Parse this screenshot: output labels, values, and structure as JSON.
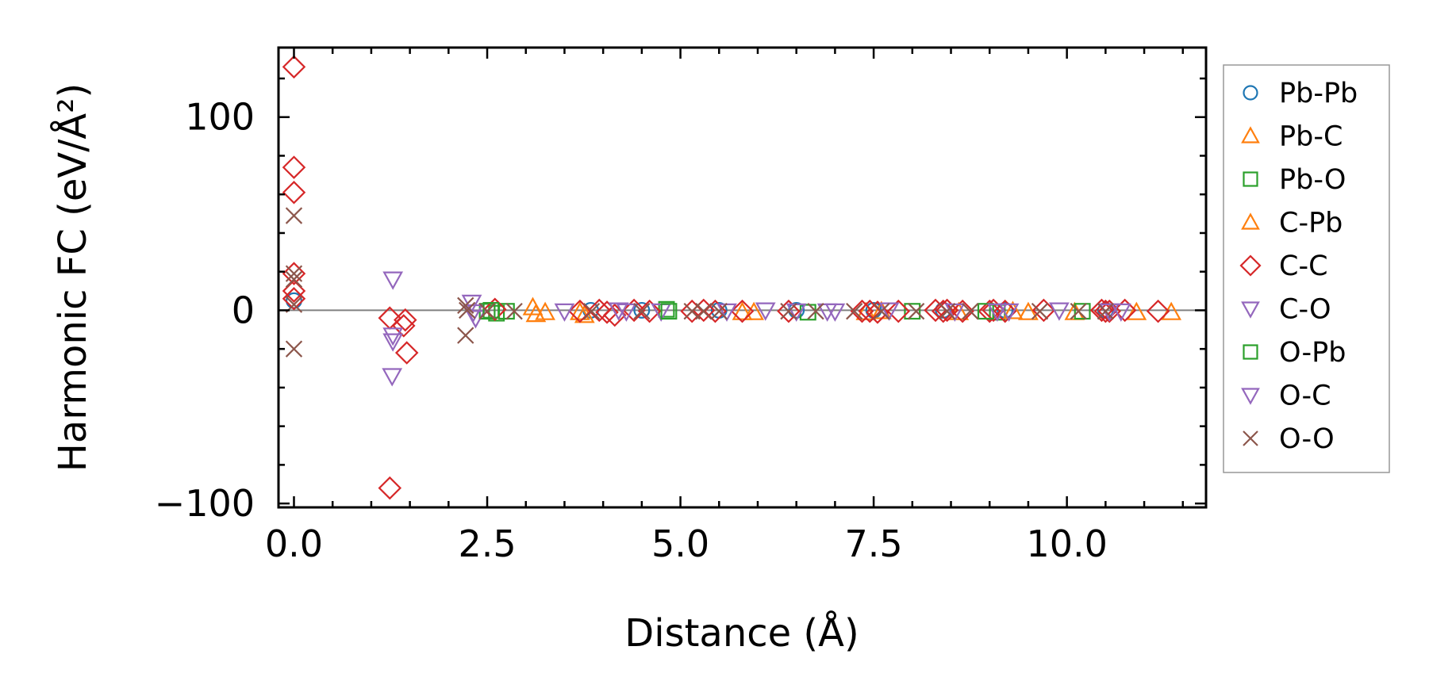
{
  "chart_data": {
    "type": "scatter",
    "title": "",
    "xlabel": "Distance (Å)",
    "ylabel": "Harmonic FC (eV/Å²)",
    "xlim": [
      -0.2,
      11.8
    ],
    "ylim": [
      -102,
      136
    ],
    "xticks": [
      0.0,
      2.5,
      5.0,
      7.5,
      10.0
    ],
    "xtick_labels": [
      "0.0",
      "2.5",
      "5.0",
      "7.5",
      "10.0"
    ],
    "yticks": [
      -100,
      0,
      100
    ],
    "ytick_labels": [
      "−100",
      "0",
      "100"
    ],
    "zero_line": 0,
    "grid": false,
    "legend_position": "outside-right",
    "series": [
      {
        "name": "Pb-Pb",
        "marker": "circle",
        "color": "#1f77b4",
        "points": [
          [
            0.0,
            5.0
          ],
          [
            3.84,
            0.0
          ],
          [
            4.5,
            0.0
          ],
          [
            5.5,
            0.0
          ],
          [
            6.5,
            0.0
          ],
          [
            7.5,
            0.0
          ],
          [
            8.4,
            0.0
          ],
          [
            9.2,
            0.0
          ],
          [
            10.5,
            0.0
          ]
        ]
      },
      {
        "name": "Pb-C",
        "marker": "triangle-up",
        "color": "#ff7f0e",
        "points": [
          [
            3.09,
            1.5
          ],
          [
            3.13,
            -2.0
          ],
          [
            3.7,
            -1.0
          ],
          [
            3.76,
            -2.5
          ],
          [
            5.95,
            -1.0
          ],
          [
            7.4,
            -1.0
          ],
          [
            8.6,
            -1.0
          ],
          [
            9.5,
            -1.0
          ],
          [
            10.1,
            -1.0
          ],
          [
            10.9,
            -1.0
          ],
          [
            11.35,
            -1.0
          ]
        ]
      },
      {
        "name": "Pb-O",
        "marker": "square",
        "color": "#2ca02c",
        "points": [
          [
            2.5,
            -0.5
          ],
          [
            2.62,
            -1.5
          ],
          [
            2.75,
            -0.5
          ],
          [
            4.82,
            0.5
          ],
          [
            6.65,
            -1.0
          ],
          [
            8.0,
            -0.5
          ],
          [
            9.1,
            -1.0
          ],
          [
            10.2,
            -0.5
          ]
        ]
      },
      {
        "name": "C-Pb",
        "marker": "triangle-up",
        "color": "#ff7f0e",
        "points": [
          [
            3.25,
            -1.0
          ],
          [
            5.8,
            -1.0
          ],
          [
            7.6,
            -0.5
          ],
          [
            9.3,
            -0.5
          ]
        ]
      },
      {
        "name": "C-C",
        "marker": "diamond",
        "color": "#d62728",
        "points": [
          [
            0.0,
            126
          ],
          [
            0.0,
            74
          ],
          [
            0.0,
            61
          ],
          [
            0.0,
            19
          ],
          [
            0.0,
            10
          ],
          [
            0.0,
            6
          ],
          [
            1.24,
            -4
          ],
          [
            1.42,
            -8
          ],
          [
            1.44,
            -5
          ],
          [
            1.46,
            -22
          ],
          [
            1.24,
            -92
          ],
          [
            2.6,
            0.5
          ],
          [
            3.7,
            -0.5
          ],
          [
            3.95,
            0.0
          ],
          [
            4.05,
            -1.0
          ],
          [
            4.15,
            -2.5
          ],
          [
            4.4,
            0.0
          ],
          [
            4.6,
            -0.5
          ],
          [
            5.15,
            -0.5
          ],
          [
            5.3,
            0.0
          ],
          [
            5.45,
            -0.5
          ],
          [
            5.8,
            -0.5
          ],
          [
            6.4,
            -0.5
          ],
          [
            7.35,
            -0.5
          ],
          [
            7.45,
            -0.5
          ],
          [
            7.55,
            -1.0
          ],
          [
            7.82,
            -0.5
          ],
          [
            8.3,
            0.0
          ],
          [
            8.4,
            -0.5
          ],
          [
            8.45,
            0.0
          ],
          [
            8.65,
            -0.5
          ],
          [
            9.0,
            -0.5
          ],
          [
            9.05,
            0.0
          ],
          [
            9.2,
            -0.5
          ],
          [
            9.7,
            0.0
          ],
          [
            10.45,
            0.0
          ],
          [
            10.5,
            -0.5
          ],
          [
            10.55,
            -0.5
          ],
          [
            10.75,
            0.0
          ],
          [
            11.18,
            -0.5
          ]
        ]
      },
      {
        "name": "C-O",
        "marker": "triangle-down",
        "color": "#9467bd",
        "points": [
          [
            1.28,
            16
          ],
          [
            1.28,
            -13
          ],
          [
            1.28,
            -16
          ],
          [
            1.27,
            -34
          ],
          [
            2.3,
            4
          ],
          [
            2.32,
            -1
          ],
          [
            2.35,
            -4
          ],
          [
            3.5,
            -0.5
          ],
          [
            4.2,
            0.0
          ],
          [
            4.75,
            -0.5
          ],
          [
            5.6,
            -0.5
          ],
          [
            6.1,
            0.0
          ],
          [
            6.5,
            -0.5
          ],
          [
            7.0,
            -0.5
          ],
          [
            7.7,
            0.0
          ],
          [
            8.55,
            -0.5
          ],
          [
            9.25,
            -0.5
          ],
          [
            9.9,
            0.0
          ],
          [
            10.55,
            -0.5
          ]
        ]
      },
      {
        "name": "O-Pb",
        "marker": "square",
        "color": "#2ca02c",
        "points": [
          [
            2.55,
            0.0
          ],
          [
            4.85,
            -0.5
          ],
          [
            8.95,
            -0.5
          ]
        ]
      },
      {
        "name": "O-C",
        "marker": "triangle-down",
        "color": "#9467bd",
        "points": [
          [
            4.3,
            -0.5
          ],
          [
            6.9,
            -0.5
          ],
          [
            9.1,
            -0.5
          ],
          [
            10.7,
            -0.5
          ]
        ]
      },
      {
        "name": "O-O",
        "marker": "x",
        "color": "#8c564b",
        "points": [
          [
            0.0,
            49
          ],
          [
            0.0,
            19
          ],
          [
            0.0,
            16
          ],
          [
            0.0,
            3
          ],
          [
            0.0,
            -20
          ],
          [
            2.22,
            2.5
          ],
          [
            2.24,
            0.0
          ],
          [
            2.22,
            -13
          ],
          [
            2.5,
            -0.5
          ],
          [
            2.85,
            -0.5
          ],
          [
            3.85,
            -0.5
          ],
          [
            4.5,
            -0.5
          ],
          [
            5.15,
            -0.5
          ],
          [
            5.3,
            -0.5
          ],
          [
            5.5,
            -0.5
          ],
          [
            6.4,
            -0.5
          ],
          [
            6.75,
            -0.5
          ],
          [
            7.25,
            -0.5
          ],
          [
            7.6,
            -0.5
          ],
          [
            8.05,
            -0.5
          ],
          [
            8.45,
            -0.5
          ],
          [
            8.75,
            -0.5
          ],
          [
            9.65,
            -0.5
          ],
          [
            10.15,
            -0.5
          ],
          [
            10.5,
            -0.5
          ]
        ]
      }
    ]
  },
  "legend": {
    "items": [
      {
        "label": "Pb-Pb",
        "marker": "circle",
        "color": "#1f77b4"
      },
      {
        "label": "Pb-C",
        "marker": "triangle-up",
        "color": "#ff7f0e"
      },
      {
        "label": "Pb-O",
        "marker": "square",
        "color": "#2ca02c"
      },
      {
        "label": "C-Pb",
        "marker": "triangle-up",
        "color": "#ff7f0e"
      },
      {
        "label": "C-C",
        "marker": "diamond",
        "color": "#d62728"
      },
      {
        "label": "C-O",
        "marker": "triangle-down",
        "color": "#9467bd"
      },
      {
        "label": "O-Pb",
        "marker": "square",
        "color": "#2ca02c"
      },
      {
        "label": "O-C",
        "marker": "triangle-down",
        "color": "#9467bd"
      },
      {
        "label": "O-O",
        "marker": "x",
        "color": "#8c564b"
      }
    ]
  }
}
